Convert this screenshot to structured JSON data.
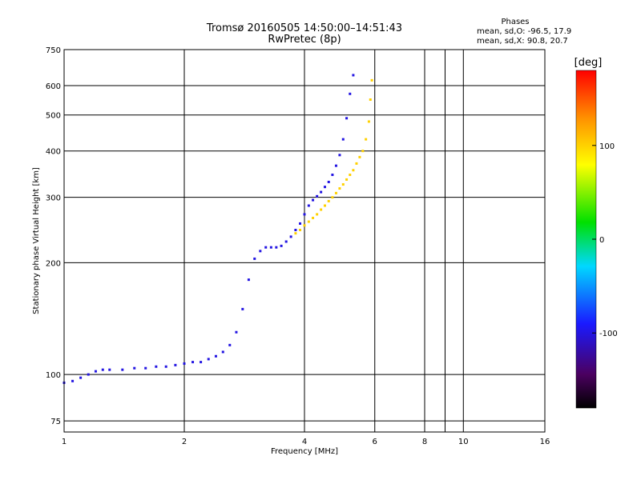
{
  "chart_data": {
    "type": "scatter",
    "title": "Tromsø 20160505 14:50:00–14:51:43",
    "subtitle": "RwPretec (8p)",
    "xlabel": "Frequency [MHz]",
    "ylabel": "Stationary phase Virtual Height [km]",
    "x_scale": "log",
    "y_scale": "log",
    "xlim": [
      1,
      16
    ],
    "ylim": [
      70,
      750
    ],
    "x_ticks": [
      1,
      2,
      4,
      6,
      8,
      10,
      16
    ],
    "y_ticks": [
      75,
      100,
      200,
      300,
      400,
      500,
      600,
      750
    ],
    "x_minor_gridlines": [
      9
    ],
    "grid": true,
    "stats": {
      "heading": "Phases",
      "line_o": "mean, sd,O: -96.5, 17.9",
      "line_x": "mean, sd,X:  90.8, 20.7"
    },
    "colorbar": {
      "label": "[deg]",
      "ticks": [
        100,
        0,
        -100
      ],
      "range": [
        -180,
        180
      ],
      "colormap": "rainbow (black–purple–blue–cyan–green–yellow–orange–red)"
    },
    "series": [
      {
        "trace": "O",
        "phase_deg": -100,
        "points": [
          [
            1.0,
            95
          ],
          [
            1.05,
            96
          ],
          [
            1.1,
            98
          ],
          [
            1.15,
            100
          ],
          [
            1.2,
            102
          ],
          [
            1.25,
            103
          ],
          [
            1.3,
            103
          ],
          [
            1.4,
            103
          ],
          [
            1.5,
            104
          ],
          [
            1.6,
            104
          ],
          [
            1.7,
            105
          ],
          [
            1.8,
            105
          ],
          [
            1.9,
            106
          ],
          [
            2.0,
            107
          ],
          [
            2.1,
            108
          ],
          [
            2.2,
            108
          ],
          [
            2.3,
            110
          ],
          [
            2.4,
            112
          ],
          [
            2.5,
            115
          ],
          [
            2.6,
            120
          ],
          [
            2.7,
            130
          ],
          [
            2.8,
            150
          ],
          [
            2.9,
            180
          ],
          [
            3.0,
            205
          ],
          [
            3.1,
            215
          ],
          [
            3.2,
            220
          ],
          [
            3.3,
            220
          ],
          [
            3.4,
            220
          ],
          [
            3.5,
            222
          ],
          [
            3.6,
            228
          ],
          [
            3.7,
            235
          ],
          [
            3.8,
            245
          ],
          [
            3.9,
            255
          ],
          [
            4.0,
            270
          ],
          [
            4.1,
            285
          ],
          [
            4.2,
            295
          ],
          [
            4.3,
            302
          ],
          [
            4.4,
            310
          ],
          [
            4.5,
            320
          ],
          [
            4.6,
            330
          ],
          [
            4.7,
            345
          ],
          [
            4.8,
            365
          ],
          [
            4.9,
            390
          ],
          [
            5.0,
            430
          ],
          [
            5.1,
            490
          ],
          [
            5.2,
            570
          ],
          [
            5.3,
            640
          ]
        ]
      },
      {
        "trace": "X",
        "phase_deg": 100,
        "points": [
          [
            3.8,
            240
          ],
          [
            3.9,
            245
          ],
          [
            4.0,
            252
          ],
          [
            4.1,
            258
          ],
          [
            4.2,
            264
          ],
          [
            4.3,
            270
          ],
          [
            4.4,
            278
          ],
          [
            4.5,
            285
          ],
          [
            4.6,
            293
          ],
          [
            4.7,
            300
          ],
          [
            4.8,
            308
          ],
          [
            4.9,
            317
          ],
          [
            5.0,
            325
          ],
          [
            5.1,
            335
          ],
          [
            5.2,
            345
          ],
          [
            5.3,
            355
          ],
          [
            5.4,
            370
          ],
          [
            5.5,
            385
          ],
          [
            5.6,
            400
          ],
          [
            5.7,
            430
          ],
          [
            5.8,
            480
          ],
          [
            5.85,
            550
          ],
          [
            5.9,
            620
          ]
        ]
      }
    ]
  }
}
